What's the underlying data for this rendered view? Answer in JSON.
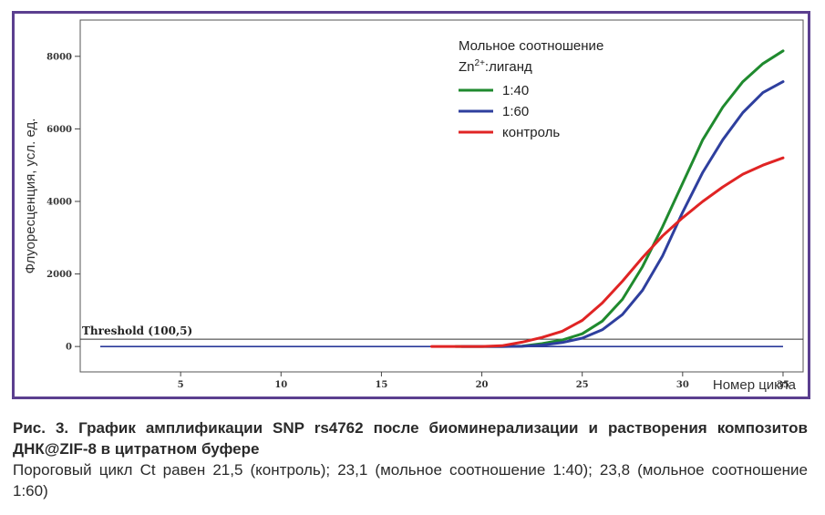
{
  "chart_data": {
    "type": "line",
    "ylabel": "Флуоресценция, усл. ед.",
    "xlabel": "Номер цикла",
    "xlim": [
      0,
      36
    ],
    "ylim": [
      -700,
      9000
    ],
    "xticks": [
      5,
      10,
      15,
      20,
      25,
      30,
      35
    ],
    "yticks": [
      0,
      2000,
      4000,
      6000,
      8000
    ],
    "threshold": {
      "label": "Threshold (100,5)",
      "value": 100.5
    },
    "legend": {
      "title_line1": "Мольное соотношение",
      "title_line2_base": "Zn",
      "title_line2_sup": "2+",
      "title_line2_rest": ":лиганд",
      "position": "top-right"
    },
    "baseline_color": "#2a3a9a",
    "series": [
      {
        "name": "1:40",
        "color": "#1f8a2e",
        "x": [
          18.7,
          19.5,
          20,
          21,
          22,
          23,
          24,
          25,
          26,
          27,
          28,
          29,
          30,
          31,
          32,
          33,
          34,
          35
        ],
        "y": [
          0,
          0,
          0,
          0,
          10,
          80,
          180,
          350,
          700,
          1300,
          2200,
          3300,
          4500,
          5700,
          6600,
          7300,
          7800,
          8150
        ]
      },
      {
        "name": "1:60",
        "color": "#2e3f9e",
        "x": [
          19,
          20,
          21,
          22,
          23,
          24,
          25,
          26,
          27,
          28,
          29,
          30,
          31,
          32,
          33,
          34,
          35
        ],
        "y": [
          0,
          0,
          0,
          5,
          40,
          110,
          230,
          460,
          880,
          1550,
          2500,
          3700,
          4800,
          5700,
          6450,
          7000,
          7300
        ]
      },
      {
        "name": "контроль",
        "color": "#e02424",
        "x": [
          17.5,
          18,
          19,
          20,
          21,
          22,
          23,
          24,
          25,
          26,
          27,
          28,
          29,
          30,
          31,
          32,
          33,
          34,
          35
        ],
        "y": [
          0,
          0,
          0,
          0,
          20,
          120,
          250,
          420,
          720,
          1200,
          1800,
          2450,
          3050,
          3550,
          4000,
          4400,
          4750,
          5000,
          5200
        ]
      }
    ]
  },
  "caption": {
    "title": "Рис. 3. График амплификации SNP rs4762 после биоминерализации и растворения композитов ДНК@ZIF-8 в цитратном буфере",
    "body": "Пороговый цикл Ct равен 21,5 (контроль); 23,1 (мольное соотношение 1:40); 23,8 (мольное соотношение 1:60)"
  }
}
